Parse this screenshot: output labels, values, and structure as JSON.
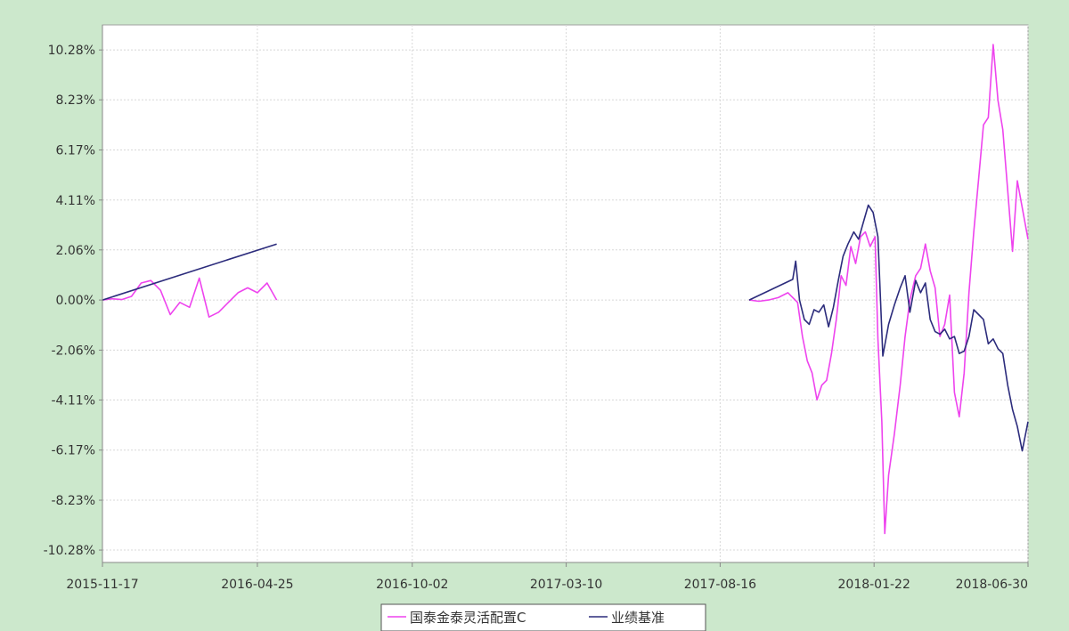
{
  "chart_data": {
    "type": "line",
    "title": "",
    "xlabel": "",
    "ylabel": "",
    "x_ticks": [
      "2015-11-17",
      "2016-04-25",
      "2016-10-02",
      "2017-03-10",
      "2017-08-16",
      "2018-01-22",
      "2018-06-30"
    ],
    "y_ticks": [
      "10.28%",
      "8.23%",
      "6.17%",
      "4.11%",
      "2.06%",
      "0.00%",
      "-2.06%",
      "-4.11%",
      "-6.17%",
      "-8.23%",
      "-10.28%"
    ],
    "xlim": [
      "2015-11-17",
      "2018-06-30"
    ],
    "ylim": [
      -10.79,
      11.31
    ],
    "grid": true,
    "legend_position": "bottom-center",
    "colors": {
      "background": "#cce8cc",
      "plot": "#ffffff",
      "grid": "#d8d8d8"
    },
    "series": [
      {
        "name": "国泰金泰灵活配置C",
        "color": "#ee44ee",
        "segments": [
          [
            [
              "2015-11-17",
              0.0
            ],
            [
              "2015-11-27",
              0.05
            ],
            [
              "2015-12-07",
              0.02
            ],
            [
              "2015-12-17",
              0.15
            ],
            [
              "2015-12-27",
              0.7
            ],
            [
              "2016-01-06",
              0.8
            ],
            [
              "2016-01-16",
              0.4
            ],
            [
              "2016-01-26",
              -0.6
            ],
            [
              "2016-02-05",
              -0.1
            ],
            [
              "2016-02-15",
              -0.3
            ],
            [
              "2016-02-25",
              0.9
            ],
            [
              "2016-03-06",
              -0.7
            ],
            [
              "2016-03-16",
              -0.5
            ],
            [
              "2016-03-26",
              -0.1
            ],
            [
              "2016-04-05",
              0.3
            ],
            [
              "2016-04-15",
              0.5
            ],
            [
              "2016-04-25",
              0.3
            ],
            [
              "2016-05-05",
              0.7
            ],
            [
              "2016-05-15",
              0.0
            ]
          ],
          [
            [
              "2017-09-15",
              0.0
            ],
            [
              "2017-09-25",
              -0.05
            ],
            [
              "2017-10-05",
              0.0
            ],
            [
              "2017-10-15",
              0.1
            ],
            [
              "2017-10-25",
              0.3
            ],
            [
              "2017-11-04",
              -0.1
            ],
            [
              "2017-11-09",
              -1.5
            ],
            [
              "2017-11-14",
              -2.5
            ],
            [
              "2017-11-19",
              -3.0
            ],
            [
              "2017-11-24",
              -4.1
            ],
            [
              "2017-11-29",
              -3.5
            ],
            [
              "2017-12-04",
              -3.3
            ],
            [
              "2017-12-09",
              -2.2
            ],
            [
              "2017-12-14",
              -0.8
            ],
            [
              "2017-12-19",
              1.0
            ],
            [
              "2017-12-24",
              0.6
            ],
            [
              "2017-12-29",
              2.2
            ],
            [
              "2018-01-03",
              1.5
            ],
            [
              "2018-01-08",
              2.6
            ],
            [
              "2018-01-13",
              2.8
            ],
            [
              "2018-01-18",
              2.2
            ],
            [
              "2018-01-23",
              2.6
            ],
            [
              "2018-01-26",
              -1.6
            ],
            [
              "2018-01-30",
              -5.0
            ],
            [
              "2018-02-02",
              -9.6
            ],
            [
              "2018-02-06",
              -7.2
            ],
            [
              "2018-02-12",
              -5.5
            ],
            [
              "2018-02-18",
              -3.5
            ],
            [
              "2018-02-23",
              -1.5
            ],
            [
              "2018-02-28",
              0.0
            ],
            [
              "2018-03-06",
              1.0
            ],
            [
              "2018-03-11",
              1.3
            ],
            [
              "2018-03-16",
              2.3
            ],
            [
              "2018-03-21",
              1.2
            ],
            [
              "2018-03-26",
              0.5
            ],
            [
              "2018-03-31",
              -1.5
            ],
            [
              "2018-04-05",
              -1.0
            ],
            [
              "2018-04-10",
              0.2
            ],
            [
              "2018-04-15",
              -3.8
            ],
            [
              "2018-04-20",
              -4.8
            ],
            [
              "2018-04-25",
              -3.0
            ],
            [
              "2018-04-30",
              0.3
            ],
            [
              "2018-05-05",
              2.8
            ],
            [
              "2018-05-10",
              5.0
            ],
            [
              "2018-05-15",
              7.2
            ],
            [
              "2018-05-20",
              7.5
            ],
            [
              "2018-05-25",
              10.5
            ],
            [
              "2018-05-30",
              8.2
            ],
            [
              "2018-06-04",
              7.0
            ],
            [
              "2018-06-09",
              4.5
            ],
            [
              "2018-06-14",
              2.0
            ],
            [
              "2018-06-19",
              4.9
            ],
            [
              "2018-06-24",
              3.8
            ],
            [
              "2018-06-30",
              2.5
            ]
          ]
        ]
      },
      {
        "name": "业绩基准",
        "color": "#2c2c7c",
        "segments": [
          [
            [
              "2015-11-17",
              0.0
            ],
            [
              "2016-05-15",
              2.3
            ]
          ],
          [
            [
              "2017-09-15",
              0.0
            ],
            [
              "2017-10-30",
              0.85
            ],
            [
              "2017-11-02",
              1.6
            ],
            [
              "2017-11-06",
              0.0
            ],
            [
              "2017-11-11",
              -0.8
            ],
            [
              "2017-11-16",
              -1.0
            ],
            [
              "2017-11-21",
              -0.4
            ],
            [
              "2017-11-26",
              -0.5
            ],
            [
              "2017-12-01",
              -0.2
            ],
            [
              "2017-12-06",
              -1.1
            ],
            [
              "2017-12-11",
              -0.3
            ],
            [
              "2017-12-16",
              0.8
            ],
            [
              "2017-12-21",
              1.8
            ],
            [
              "2017-12-26",
              2.3
            ],
            [
              "2018-01-01",
              2.8
            ],
            [
              "2018-01-06",
              2.5
            ],
            [
              "2018-01-11",
              3.2
            ],
            [
              "2018-01-16",
              3.9
            ],
            [
              "2018-01-21",
              3.6
            ],
            [
              "2018-01-26",
              2.6
            ],
            [
              "2018-01-31",
              -2.3
            ],
            [
              "2018-02-06",
              -1.0
            ],
            [
              "2018-02-12",
              -0.2
            ],
            [
              "2018-02-18",
              0.5
            ],
            [
              "2018-02-23",
              1.0
            ],
            [
              "2018-02-28",
              -0.5
            ],
            [
              "2018-03-06",
              0.8
            ],
            [
              "2018-03-11",
              0.3
            ],
            [
              "2018-03-16",
              0.7
            ],
            [
              "2018-03-21",
              -0.8
            ],
            [
              "2018-03-26",
              -1.3
            ],
            [
              "2018-03-31",
              -1.4
            ],
            [
              "2018-04-05",
              -1.2
            ],
            [
              "2018-04-10",
              -1.6
            ],
            [
              "2018-04-15",
              -1.5
            ],
            [
              "2018-04-20",
              -2.2
            ],
            [
              "2018-04-25",
              -2.1
            ],
            [
              "2018-04-30",
              -1.5
            ],
            [
              "2018-05-05",
              -0.4
            ],
            [
              "2018-05-10",
              -0.6
            ],
            [
              "2018-05-15",
              -0.8
            ],
            [
              "2018-05-20",
              -1.8
            ],
            [
              "2018-05-25",
              -1.6
            ],
            [
              "2018-05-30",
              -2.0
            ],
            [
              "2018-06-04",
              -2.2
            ],
            [
              "2018-06-09",
              -3.5
            ],
            [
              "2018-06-14",
              -4.5
            ],
            [
              "2018-06-19",
              -5.2
            ],
            [
              "2018-06-24",
              -6.2
            ],
            [
              "2018-06-30",
              -5.0
            ]
          ]
        ]
      }
    ]
  }
}
